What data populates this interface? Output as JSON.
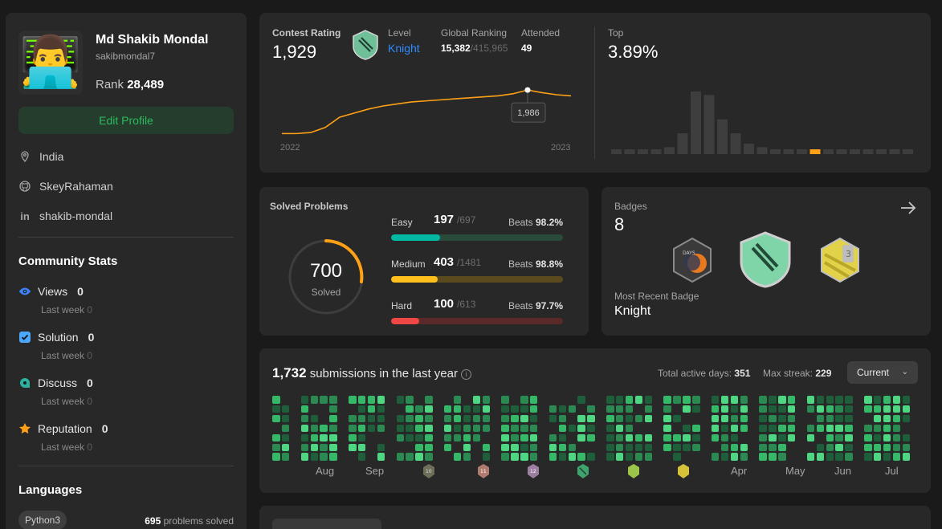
{
  "profile": {
    "name": "Md Shakib Mondal",
    "handle": "sakibmondal7",
    "rank_label": "Rank",
    "rank_value": "28,489",
    "edit_label": "Edit Profile",
    "location": "India",
    "github": "SkeyRahaman",
    "linkedin": "shakib-mondal"
  },
  "community": {
    "title": "Community Stats",
    "items": [
      {
        "label": "Views",
        "value": "0",
        "sub_label": "Last week",
        "sub_value": "0",
        "icon": "eye-icon",
        "color": "#3b82f6"
      },
      {
        "label": "Solution",
        "value": "0",
        "sub_label": "Last week",
        "sub_value": "0",
        "icon": "solution-check-icon",
        "color": "#4aa8ff"
      },
      {
        "label": "Discuss",
        "value": "0",
        "sub_label": "Last week",
        "sub_value": "0",
        "icon": "discuss-icon",
        "color": "#2bb3a0"
      },
      {
        "label": "Reputation",
        "value": "0",
        "sub_label": "Last week",
        "sub_value": "0",
        "icon": "star-icon",
        "color": "#ffa116"
      }
    ]
  },
  "languages": {
    "title": "Languages",
    "items": [
      {
        "name": "Python3",
        "count": "695",
        "suffix": "problems solved"
      }
    ]
  },
  "contest": {
    "rating_label": "Contest Rating",
    "rating": "1,929",
    "level_label": "Level",
    "level": "Knight",
    "global_label": "Global Ranking",
    "global_rank": "15,382",
    "global_total": "/415,965",
    "attended_label": "Attended",
    "attended": "49",
    "top_label": "Top",
    "top_value": "3.89%",
    "tooltip": "1,986",
    "year_start": "2022",
    "year_end": "2023"
  },
  "solved": {
    "title": "Solved Problems",
    "total": "700",
    "total_label": "Solved",
    "beats_label": "Beats",
    "difficulties": [
      {
        "label": "Easy",
        "solved": "197",
        "total": "/697",
        "beats": "98.2%",
        "fraction": 0.283,
        "color": "#00b8a3",
        "track": "#2a4a3b"
      },
      {
        "label": "Medium",
        "solved": "403",
        "total": "/1481",
        "beats": "98.8%",
        "fraction": 0.272,
        "color": "#ffc01e",
        "track": "#5a4a1e"
      },
      {
        "label": "Hard",
        "solved": "100",
        "total": "/613",
        "beats": "97.7%",
        "fraction": 0.163,
        "color": "#ef4743",
        "track": "#5a2a2a"
      }
    ]
  },
  "badges": {
    "title": "Badges",
    "count": "8",
    "recent_label": "Most Recent Badge",
    "recent": "Knight"
  },
  "submissions": {
    "count": "1,732",
    "text": "submissions in the last year",
    "active_label": "Total active days:",
    "active": "351",
    "streak_label": "Max streak:",
    "streak": "229",
    "dropdown": "Current",
    "months": [
      "Aug",
      "Sep",
      "Apr",
      "May",
      "Jun",
      "Jul"
    ]
  },
  "chart_data": [
    {
      "type": "line",
      "x": [
        "2022",
        "",
        "",
        "",
        "",
        "",
        "",
        "",
        "",
        "",
        "",
        "",
        "",
        "",
        "",
        "",
        "",
        "",
        "",
        "",
        "2023"
      ],
      "values": [
        1560,
        1560,
        1570,
        1620,
        1720,
        1760,
        1800,
        1830,
        1850,
        1870,
        1880,
        1890,
        1900,
        1910,
        1920,
        1930,
        1950,
        1986,
        1960,
        1940,
        1929
      ],
      "annotation": "1,986",
      "title": "Contest Rating"
    },
    {
      "type": "bar",
      "values": [
        1,
        1,
        1,
        1,
        2,
        6,
        18,
        17,
        10,
        6,
        3,
        2,
        1,
        1,
        1,
        1,
        1,
        1,
        1,
        1,
        1,
        1,
        1
      ],
      "highlight_index": 15,
      "highlight_color": "#ffa116",
      "title": "Top"
    }
  ]
}
